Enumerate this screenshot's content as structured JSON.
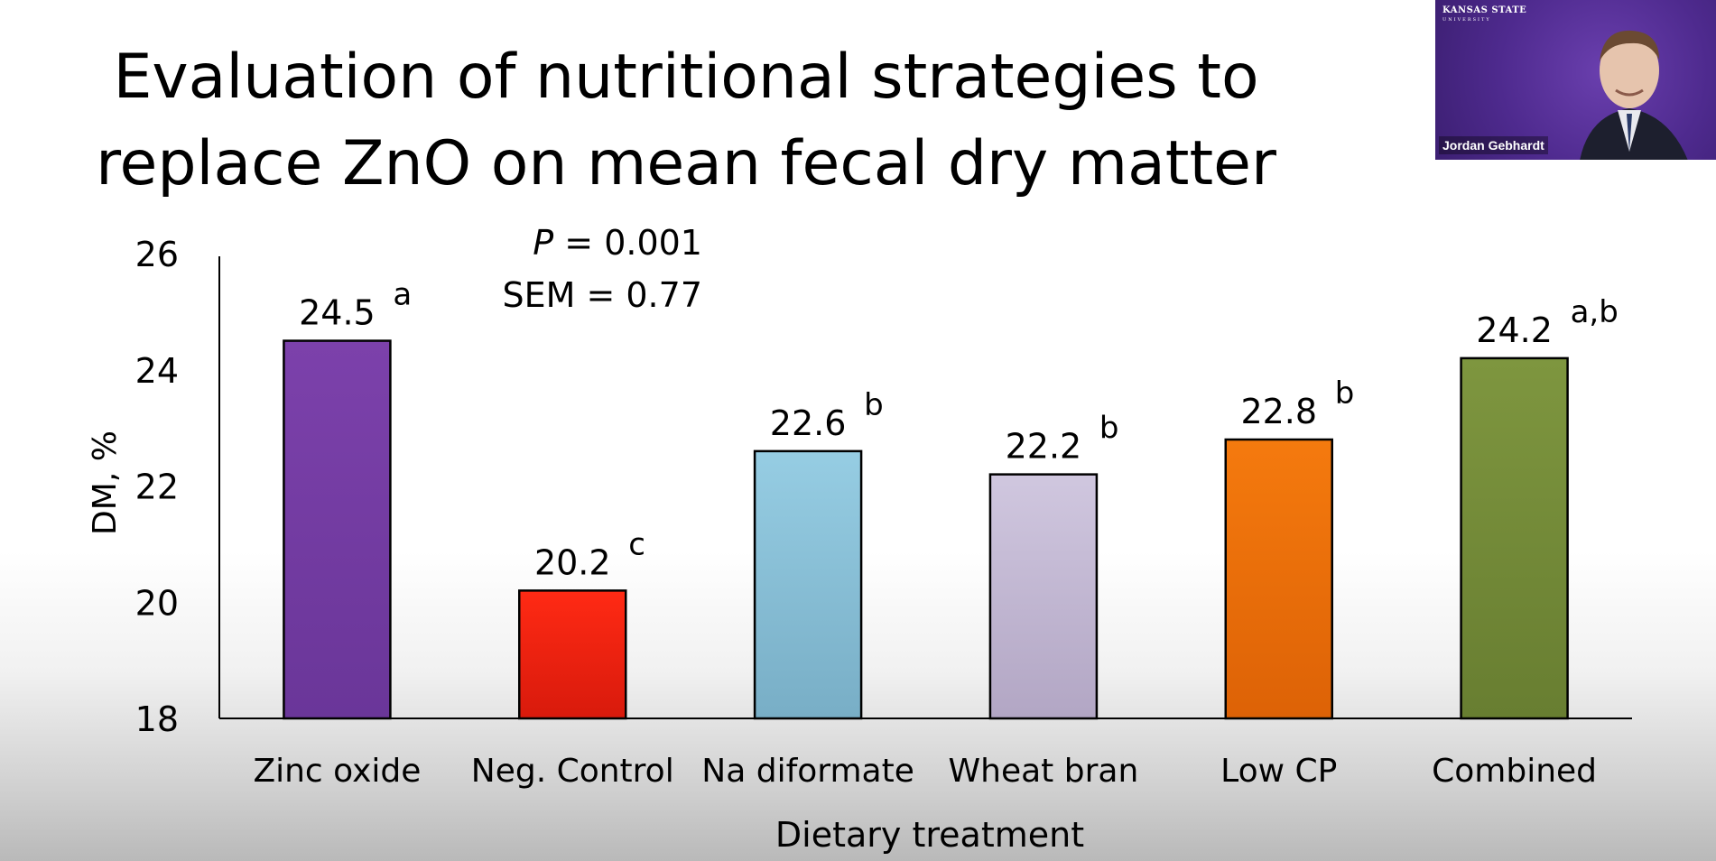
{
  "slide": {
    "title_line1": "Evaluation of nutritional strategies to",
    "title_line2": "replace ZnO on mean fecal dry matter"
  },
  "stats": {
    "p_label": "P",
    "p_value": " = 0.001",
    "sem": "SEM = 0.77"
  },
  "video": {
    "logo_line1": "KANSAS STATE",
    "logo_line2": "UNIVERSITY",
    "participant_name": "Jordan Gebhardt",
    "background_color": "#4e2a8e"
  },
  "chart_data": {
    "type": "bar",
    "title": "Evaluation of nutritional strategies to replace ZnO on mean fecal dry matter",
    "xlabel": "Dietary treatment",
    "ylabel": "DM, %",
    "ylim": [
      18,
      26
    ],
    "yticks": [
      18,
      20,
      22,
      24,
      26
    ],
    "grid": false,
    "legend": "none",
    "categories": [
      "Zinc oxide",
      "Neg. Control",
      "Na diformate",
      "Wheat bran",
      "Low CP",
      "Combined"
    ],
    "values": [
      24.5,
      20.2,
      22.6,
      22.2,
      22.8,
      24.2
    ],
    "value_labels": [
      "24.5",
      "20.2",
      "22.6",
      "22.2",
      "22.8",
      "24.2"
    ],
    "superscripts": [
      "a",
      "c",
      "b",
      "b",
      "b",
      "a,b"
    ],
    "colors": [
      [
        "#7c41ab",
        "#6a3699"
      ],
      [
        "#ff2a14",
        "#d81a0c"
      ],
      [
        "#96cde3",
        "#78aec6"
      ],
      [
        "#d0c7df",
        "#b2a6c4"
      ],
      [
        "#f57a0e",
        "#dd6206"
      ],
      [
        "#7e963f",
        "#687e31"
      ]
    ]
  }
}
